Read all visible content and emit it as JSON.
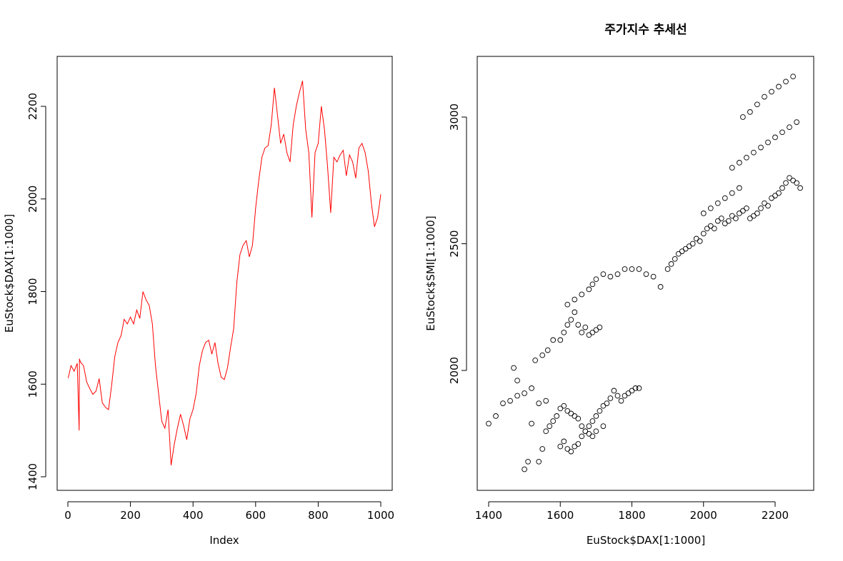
{
  "chart_data": [
    {
      "type": "line",
      "title": "",
      "xlabel": "Index",
      "ylabel": "EuStock$DAX[1:1000]",
      "xlim": [
        0,
        1000
      ],
      "ylim": [
        1400,
        2280
      ],
      "xticks": [
        0,
        200,
        400,
        600,
        800,
        1000
      ],
      "yticks": [
        1400,
        1600,
        1800,
        2000,
        2200
      ],
      "line_color": "#ff0000",
      "grid": false,
      "series": [
        {
          "x": [
            1,
            10,
            20,
            30,
            36,
            37,
            40,
            50,
            60,
            70,
            80,
            90,
            100,
            110,
            120,
            130,
            140,
            150,
            160,
            170,
            180,
            190,
            200,
            210,
            220,
            230,
            240,
            250,
            260,
            270,
            280,
            290,
            300,
            310,
            320,
            330,
            340,
            350,
            360,
            370,
            380,
            390,
            400,
            410,
            420,
            430,
            440,
            450,
            460,
            470,
            480,
            490,
            500,
            510,
            520,
            530,
            540,
            550,
            560,
            570,
            580,
            590,
            600,
            610,
            620,
            630,
            640,
            650,
            660,
            670,
            680,
            690,
            700,
            710,
            720,
            730,
            740,
            750,
            760,
            770,
            780,
            790,
            800,
            810,
            820,
            830,
            840,
            850,
            860,
            870,
            880,
            890,
            900,
            910,
            920,
            930,
            940,
            950,
            960,
            970,
            980,
            990,
            1000
          ],
          "y": [
            1613,
            1640,
            1628,
            1645,
            1500,
            1655,
            1648,
            1640,
            1605,
            1590,
            1578,
            1585,
            1612,
            1560,
            1550,
            1545,
            1598,
            1660,
            1690,
            1705,
            1740,
            1730,
            1745,
            1730,
            1760,
            1742,
            1800,
            1782,
            1770,
            1730,
            1640,
            1580,
            1520,
            1505,
            1545,
            1425,
            1470,
            1505,
            1535,
            1510,
            1480,
            1525,
            1545,
            1580,
            1640,
            1672,
            1690,
            1695,
            1665,
            1690,
            1645,
            1615,
            1610,
            1635,
            1680,
            1720,
            1820,
            1880,
            1900,
            1910,
            1875,
            1900,
            1980,
            2040,
            2090,
            2110,
            2115,
            2160,
            2240,
            2180,
            2120,
            2140,
            2100,
            2080,
            2160,
            2200,
            2230,
            2255,
            2150,
            2100,
            1960,
            2100,
            2120,
            2200,
            2150,
            2070,
            1970,
            2090,
            2080,
            2095,
            2105,
            2050,
            2095,
            2080,
            2045,
            2110,
            2120,
            2100,
            2060,
            1990,
            1940,
            1960,
            2010
          ]
        }
      ]
    },
    {
      "type": "scatter",
      "title": "주가지수 추세선",
      "xlabel": "EuStock$DAX[1:1000]",
      "ylabel": "EuStock$SMI[1:1000]",
      "xlim": [
        1400,
        2280
      ],
      "ylim": [
        1600,
        3200
      ],
      "xticks": [
        1400,
        1600,
        1800,
        2000,
        2200
      ],
      "yticks": [
        2000,
        2500,
        3000
      ],
      "marker": "open-circle",
      "grid": false,
      "series": [
        {
          "x": [
            1400,
            1420,
            1440,
            1460,
            1480,
            1500,
            1520,
            1480,
            1470,
            1530,
            1550,
            1565,
            1580,
            1560,
            1540,
            1520,
            1600,
            1610,
            1620,
            1630,
            1640,
            1650,
            1660,
            1670,
            1680,
            1690,
            1700,
            1710,
            1720,
            1730,
            1740,
            1750,
            1760,
            1770,
            1780,
            1790,
            1800,
            1810,
            1820,
            1500,
            1510,
            1540,
            1550,
            1560,
            1570,
            1580,
            1590,
            1600,
            1610,
            1620,
            1630,
            1640,
            1650,
            1660,
            1670,
            1680,
            1690,
            1700,
            1720,
            1600,
            1610,
            1620,
            1630,
            1640,
            1650,
            1660,
            1670,
            1680,
            1690,
            1700,
            1710,
            1620,
            1640,
            1660,
            1680,
            1690,
            1700,
            1720,
            1740,
            1760,
            1780,
            1800,
            1820,
            1840,
            1860,
            1880,
            1900,
            1910,
            1920,
            1930,
            1940,
            1950,
            1960,
            1970,
            1980,
            1990,
            2000,
            2010,
            2020,
            2030,
            2040,
            2050,
            2060,
            2070,
            2080,
            2090,
            2100,
            2110,
            2120,
            2130,
            2140,
            2150,
            2160,
            2170,
            2180,
            2190,
            2200,
            2210,
            2220,
            2230,
            2240,
            2250,
            2260,
            2270,
            2080,
            2100,
            2120,
            2140,
            2160,
            2180,
            2200,
            2220,
            2240,
            2260,
            2110,
            2130,
            2150,
            2170,
            2190,
            2210,
            2230,
            2250,
            2000,
            2020,
            2040,
            2060,
            2080,
            2100
          ],
          "y": [
            1790,
            1820,
            1870,
            1880,
            1900,
            1910,
            1930,
            1960,
            2010,
            2040,
            2060,
            2080,
            2120,
            1880,
            1870,
            1790,
            1700,
            1720,
            1690,
            1680,
            1700,
            1710,
            1740,
            1760,
            1780,
            1800,
            1820,
            1840,
            1860,
            1870,
            1890,
            1920,
            1900,
            1880,
            1900,
            1910,
            1920,
            1930,
            1930,
            1610,
            1640,
            1640,
            1690,
            1760,
            1780,
            1800,
            1820,
            1850,
            1860,
            1840,
            1830,
            1820,
            1810,
            1780,
            1760,
            1750,
            1740,
            1760,
            1780,
            2120,
            2150,
            2180,
            2200,
            2230,
            2180,
            2150,
            2170,
            2140,
            2150,
            2160,
            2170,
            2260,
            2280,
            2300,
            2320,
            2340,
            2360,
            2380,
            2370,
            2380,
            2400,
            2400,
            2400,
            2380,
            2370,
            2330,
            2400,
            2420,
            2440,
            2460,
            2470,
            2480,
            2490,
            2500,
            2520,
            2510,
            2540,
            2560,
            2570,
            2560,
            2590,
            2600,
            2580,
            2590,
            2610,
            2600,
            2620,
            2630,
            2640,
            2600,
            2610,
            2620,
            2640,
            2660,
            2650,
            2680,
            2690,
            2700,
            2720,
            2740,
            2760,
            2750,
            2740,
            2720,
            2800,
            2820,
            2840,
            2860,
            2880,
            2900,
            2920,
            2940,
            2960,
            2980,
            3000,
            3020,
            3050,
            3080,
            3100,
            3120,
            3140,
            3160,
            2620,
            2640,
            2660,
            2680,
            2700,
            2720
          ]
        }
      ]
    }
  ]
}
